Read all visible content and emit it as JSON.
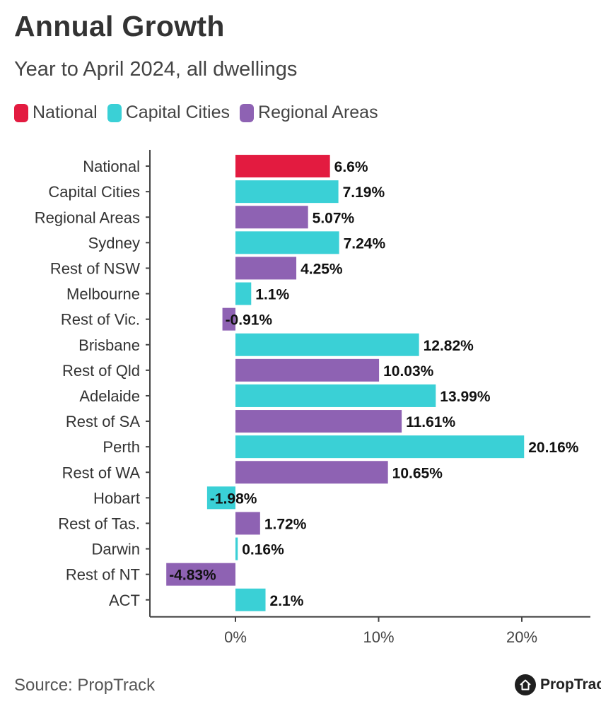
{
  "header": {
    "title": "Annual Growth",
    "subtitle": "Year to April 2024, all dwellings"
  },
  "legend": [
    {
      "label": "National",
      "color": "#e31b40"
    },
    {
      "label": "Capital Cities",
      "color": "#3ad0d6"
    },
    {
      "label": "Regional Areas",
      "color": "#8e62b3"
    }
  ],
  "chart_data": {
    "type": "bar",
    "orientation": "horizontal",
    "categories": [
      "National",
      "Capital Cities",
      "Regional Areas",
      "Sydney",
      "Rest of NSW",
      "Melbourne",
      "Rest of Vic.",
      "Brisbane",
      "Rest of Qld",
      "Adelaide",
      "Rest of SA",
      "Perth",
      "Rest of WA",
      "Hobart",
      "Rest of Tas.",
      "Darwin",
      "Rest of NT",
      "ACT"
    ],
    "values": [
      6.6,
      7.19,
      5.07,
      7.24,
      4.25,
      1.1,
      -0.91,
      12.82,
      10.03,
      13.99,
      11.61,
      20.16,
      10.65,
      -1.98,
      1.72,
      0.16,
      -4.83,
      2.1
    ],
    "value_labels": [
      "6.6%",
      "7.19%",
      "5.07%",
      "7.24%",
      "4.25%",
      "1.1%",
      "-0.91%",
      "12.82%",
      "10.03%",
      "13.99%",
      "11.61%",
      "20.16%",
      "10.65%",
      "-1.98%",
      "1.72%",
      "0.16%",
      "-4.83%",
      "2.1%"
    ],
    "groups": [
      "National",
      "Capital Cities",
      "Regional Areas",
      "Capital Cities",
      "Regional Areas",
      "Capital Cities",
      "Regional Areas",
      "Capital Cities",
      "Regional Areas",
      "Capital Cities",
      "Regional Areas",
      "Capital Cities",
      "Regional Areas",
      "Capital Cities",
      "Regional Areas",
      "Capital Cities",
      "Regional Areas",
      "Capital Cities"
    ],
    "xlim": [
      -6,
      25
    ],
    "xticks": [
      0,
      10,
      20
    ],
    "xtick_labels": [
      "0%",
      "10%",
      "20%"
    ],
    "grid": false,
    "legend_position": "top-left"
  },
  "footer": {
    "source": "Source: PropTrack",
    "brand": "PropTrack",
    "brand_icon": "house-icon"
  }
}
